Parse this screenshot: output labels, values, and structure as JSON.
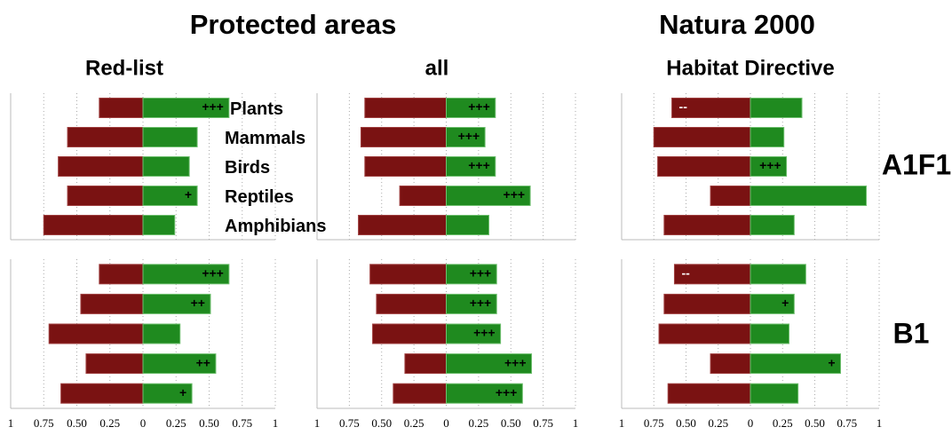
{
  "headers": {
    "titles": [
      "Protected areas",
      "Natura 2000"
    ],
    "subtitles": [
      "Red-list",
      "all",
      "Habitat Directive"
    ],
    "rows": [
      "A1F1",
      "B1"
    ]
  },
  "chart_data": [
    {
      "type": "bar",
      "orientation": "horizontal",
      "categories": [
        "Plants",
        "Mammals",
        "Birds",
        "Reptiles",
        "Amphibians"
      ],
      "xlim": [
        -1,
        1
      ],
      "xticks": [
        -1,
        -0.75,
        -0.5,
        -0.25,
        0,
        0.25,
        0.5,
        0.75,
        1
      ],
      "grid": true,
      "series": [
        {
          "color": "#7a1212",
          "values": [
            -0.33,
            -0.57,
            -0.64,
            -0.57,
            -0.75
          ],
          "annotations": [
            null,
            null,
            null,
            null,
            null
          ]
        },
        {
          "color": "#1f8a1f",
          "values": [
            0.65,
            0.41,
            0.35,
            0.41,
            0.24
          ],
          "annotations": [
            "+++",
            null,
            null,
            "+",
            null
          ]
        }
      ]
    },
    {
      "type": "bar",
      "orientation": "horizontal",
      "xlim": [
        -1,
        1
      ],
      "xticks": [
        -1,
        -0.75,
        -0.5,
        -0.25,
        0,
        0.25,
        0.5,
        0.75,
        1
      ],
      "grid": true,
      "series": [
        {
          "color": "#7a1212",
          "values": [
            -0.63,
            -0.66,
            -0.63,
            -0.36,
            -0.68
          ],
          "annotations": [
            null,
            null,
            null,
            null,
            null
          ]
        },
        {
          "color": "#1f8a1f",
          "values": [
            0.38,
            0.3,
            0.38,
            0.65,
            0.33
          ],
          "annotations": [
            "+++",
            "+++",
            "+++",
            "+++",
            null
          ]
        }
      ]
    },
    {
      "type": "bar",
      "orientation": "horizontal",
      "xlim": [
        -1,
        1
      ],
      "xticks": [
        -1,
        -0.75,
        -0.5,
        -0.25,
        0,
        0.25,
        0.5,
        0.75,
        1
      ],
      "grid": true,
      "series": [
        {
          "color": "#7a1212",
          "values": [
            -0.61,
            -0.75,
            -0.72,
            -0.31,
            -0.67
          ],
          "annotations": [
            "--",
            null,
            null,
            null,
            null
          ]
        },
        {
          "color": "#1f8a1f",
          "values": [
            0.4,
            0.26,
            0.28,
            0.9,
            0.34
          ],
          "annotations": [
            null,
            null,
            "+++",
            null,
            null
          ]
        }
      ]
    },
    {
      "type": "bar",
      "orientation": "horizontal",
      "xlim": [
        -1,
        1
      ],
      "xticks": [
        {
          "value": -1,
          "label": "1"
        },
        {
          "value": -0.75,
          "label": "0.75"
        },
        {
          "value": -0.5,
          "label": "0.50"
        },
        {
          "value": -0.25,
          "label": "0.25"
        },
        0,
        0.25,
        {
          "value": 0.5,
          "label": "0.50"
        },
        0.75,
        1
      ],
      "grid": true,
      "series": [
        {
          "color": "#7a1212",
          "values": [
            -0.33,
            -0.47,
            -0.71,
            -0.43,
            -0.62
          ],
          "annotations": [
            null,
            null,
            null,
            null,
            null
          ]
        },
        {
          "color": "#1f8a1f",
          "values": [
            0.65,
            0.51,
            0.28,
            0.55,
            0.37
          ],
          "annotations": [
            "+++",
            "++",
            null,
            "++",
            "+"
          ]
        }
      ]
    },
    {
      "type": "bar",
      "orientation": "horizontal",
      "xlim": [
        -1,
        1
      ],
      "xticks": [
        {
          "value": -1,
          "label": "1"
        },
        {
          "value": -0.75,
          "label": "0.75"
        },
        {
          "value": -0.5,
          "label": "0.50"
        },
        {
          "value": -0.25,
          "label": "0.25"
        },
        0,
        0.25,
        {
          "value": 0.5,
          "label": "0.50"
        },
        0.75,
        1
      ],
      "grid": true,
      "series": [
        {
          "color": "#7a1212",
          "values": [
            -0.59,
            -0.54,
            -0.57,
            -0.32,
            -0.41
          ],
          "annotations": [
            null,
            null,
            null,
            null,
            null
          ]
        },
        {
          "color": "#1f8a1f",
          "values": [
            0.39,
            0.39,
            0.42,
            0.66,
            0.59
          ],
          "annotations": [
            "+++",
            "+++",
            "+++",
            "+++",
            "+++"
          ]
        }
      ]
    },
    {
      "type": "bar",
      "orientation": "horizontal",
      "xlim": [
        -1,
        1
      ],
      "xticks": [
        {
          "value": -1,
          "label": "1"
        },
        {
          "value": -0.75,
          "label": "0.75"
        },
        {
          "value": -0.5,
          "label": "0.50"
        },
        {
          "value": -0.25,
          "label": "0.25"
        },
        0,
        0.25,
        {
          "value": 0.5,
          "label": "0.50"
        },
        0.75,
        1
      ],
      "grid": true,
      "series": [
        {
          "color": "#7a1212",
          "values": [
            -0.59,
            -0.67,
            -0.71,
            -0.31,
            -0.64
          ],
          "annotations": [
            "--",
            null,
            null,
            null,
            null
          ]
        },
        {
          "color": "#1f8a1f",
          "values": [
            0.43,
            0.34,
            0.3,
            0.7,
            0.37
          ],
          "annotations": [
            null,
            "+",
            null,
            "+",
            null
          ]
        }
      ]
    }
  ]
}
